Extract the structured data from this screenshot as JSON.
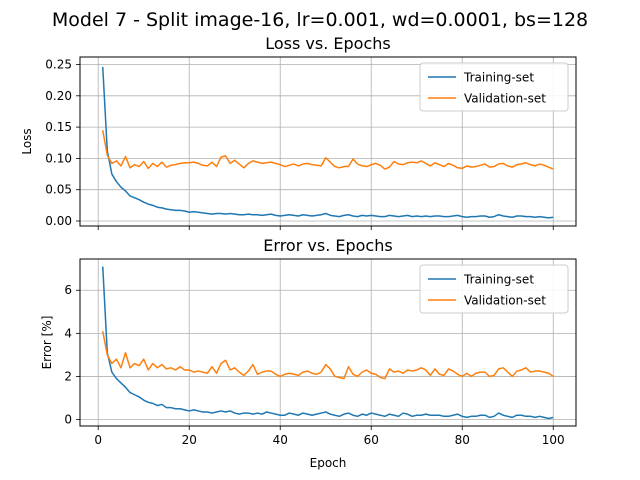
{
  "figure": {
    "suptitle": "Model 7 - Split image-16, lr=0.001, wd=0.0001, bs=128"
  },
  "colors": {
    "training": "#1f77b4",
    "validation": "#ff7f0e",
    "grid": "#b0b0b0"
  },
  "chart_data": [
    {
      "type": "line",
      "title": "Loss vs. Epochs",
      "xlabel": "",
      "ylabel": "Loss",
      "xlim": [
        -4,
        105
      ],
      "ylim": [
        -0.008,
        0.262
      ],
      "xticks": [
        0,
        20,
        40,
        60,
        80,
        100
      ],
      "show_xtick_labels": false,
      "yticks": [
        0.0,
        0.05,
        0.1,
        0.15,
        0.2,
        0.25
      ],
      "ytick_labels": [
        "0.00",
        "0.05",
        "0.10",
        "0.15",
        "0.20",
        "0.25"
      ],
      "grid": true,
      "legend": "top-right",
      "x_start": 1,
      "series": [
        {
          "name": "Training-set",
          "color_key": "training",
          "values": [
            0.246,
            0.112,
            0.075,
            0.063,
            0.054,
            0.048,
            0.04,
            0.037,
            0.034,
            0.03,
            0.027,
            0.025,
            0.022,
            0.021,
            0.019,
            0.018,
            0.017,
            0.017,
            0.016,
            0.014,
            0.015,
            0.014,
            0.013,
            0.012,
            0.011,
            0.012,
            0.012,
            0.011,
            0.012,
            0.011,
            0.01,
            0.01,
            0.011,
            0.01,
            0.01,
            0.009,
            0.01,
            0.011,
            0.009,
            0.008,
            0.009,
            0.01,
            0.009,
            0.008,
            0.01,
            0.009,
            0.008,
            0.009,
            0.01,
            0.012,
            0.009,
            0.008,
            0.007,
            0.009,
            0.01,
            0.008,
            0.007,
            0.009,
            0.008,
            0.009,
            0.008,
            0.007,
            0.007,
            0.009,
            0.008,
            0.007,
            0.008,
            0.009,
            0.007,
            0.008,
            0.007,
            0.008,
            0.007,
            0.008,
            0.008,
            0.007,
            0.007,
            0.008,
            0.009,
            0.007,
            0.006,
            0.007,
            0.007,
            0.008,
            0.008,
            0.006,
            0.007,
            0.01,
            0.008,
            0.007,
            0.006,
            0.008,
            0.008,
            0.007,
            0.007,
            0.006,
            0.007,
            0.006,
            0.005,
            0.006
          ]
        },
        {
          "name": "Validation-set",
          "color_key": "validation",
          "values": [
            0.145,
            0.105,
            0.092,
            0.096,
            0.088,
            0.103,
            0.085,
            0.09,
            0.087,
            0.095,
            0.084,
            0.092,
            0.087,
            0.094,
            0.086,
            0.089,
            0.09,
            0.092,
            0.093,
            0.093,
            0.094,
            0.092,
            0.089,
            0.088,
            0.094,
            0.087,
            0.102,
            0.104,
            0.092,
            0.097,
            0.091,
            0.085,
            0.092,
            0.096,
            0.094,
            0.092,
            0.093,
            0.094,
            0.092,
            0.09,
            0.087,
            0.089,
            0.091,
            0.088,
            0.091,
            0.092,
            0.09,
            0.089,
            0.088,
            0.101,
            0.094,
            0.087,
            0.085,
            0.087,
            0.087,
            0.099,
            0.091,
            0.088,
            0.087,
            0.09,
            0.092,
            0.089,
            0.083,
            0.086,
            0.095,
            0.091,
            0.09,
            0.093,
            0.094,
            0.093,
            0.096,
            0.092,
            0.088,
            0.093,
            0.09,
            0.087,
            0.092,
            0.089,
            0.085,
            0.084,
            0.088,
            0.086,
            0.087,
            0.089,
            0.091,
            0.086,
            0.087,
            0.091,
            0.092,
            0.088,
            0.086,
            0.09,
            0.091,
            0.093,
            0.09,
            0.088,
            0.091,
            0.089,
            0.086,
            0.083
          ]
        }
      ]
    },
    {
      "type": "line",
      "title": "Error vs. Epochs",
      "xlabel": "Epoch",
      "ylabel": "Error [%]",
      "xlim": [
        -4,
        105
      ],
      "ylim": [
        -0.3,
        7.45
      ],
      "xticks": [
        0,
        20,
        40,
        60,
        80,
        100
      ],
      "xtick_labels": [
        "0",
        "20",
        "40",
        "60",
        "80",
        "100"
      ],
      "show_xtick_labels": true,
      "yticks": [
        0,
        2,
        4,
        6
      ],
      "ytick_labels": [
        "0",
        "2",
        "4",
        "6"
      ],
      "grid": true,
      "legend": "top-right",
      "x_start": 1,
      "series": [
        {
          "name": "Training-set",
          "color_key": "training",
          "values": [
            7.1,
            3.1,
            2.2,
            1.9,
            1.7,
            1.5,
            1.25,
            1.15,
            1.05,
            0.9,
            0.8,
            0.75,
            0.65,
            0.7,
            0.55,
            0.55,
            0.5,
            0.5,
            0.45,
            0.4,
            0.45,
            0.4,
            0.35,
            0.35,
            0.3,
            0.35,
            0.4,
            0.35,
            0.4,
            0.3,
            0.25,
            0.3,
            0.3,
            0.25,
            0.3,
            0.25,
            0.35,
            0.3,
            0.25,
            0.2,
            0.2,
            0.3,
            0.25,
            0.2,
            0.3,
            0.25,
            0.2,
            0.25,
            0.3,
            0.35,
            0.25,
            0.2,
            0.15,
            0.25,
            0.3,
            0.2,
            0.15,
            0.25,
            0.2,
            0.3,
            0.25,
            0.2,
            0.15,
            0.25,
            0.2,
            0.15,
            0.3,
            0.25,
            0.15,
            0.2,
            0.2,
            0.25,
            0.2,
            0.2,
            0.2,
            0.15,
            0.15,
            0.2,
            0.25,
            0.15,
            0.1,
            0.15,
            0.15,
            0.2,
            0.2,
            0.1,
            0.15,
            0.3,
            0.2,
            0.15,
            0.1,
            0.2,
            0.2,
            0.15,
            0.15,
            0.1,
            0.15,
            0.1,
            0.05,
            0.1
          ]
        },
        {
          "name": "Validation-set",
          "color_key": "validation",
          "values": [
            4.1,
            3.0,
            2.6,
            2.8,
            2.4,
            3.1,
            2.4,
            2.6,
            2.5,
            2.8,
            2.3,
            2.6,
            2.4,
            2.55,
            2.35,
            2.4,
            2.3,
            2.45,
            2.3,
            2.3,
            2.2,
            2.25,
            2.2,
            2.15,
            2.45,
            2.15,
            2.6,
            2.75,
            2.3,
            2.4,
            2.2,
            2.05,
            2.25,
            2.55,
            2.1,
            2.2,
            2.25,
            2.25,
            2.1,
            2.0,
            2.1,
            2.15,
            2.1,
            2.05,
            2.2,
            2.25,
            2.15,
            2.1,
            2.2,
            2.55,
            2.35,
            2.0,
            1.95,
            1.9,
            2.45,
            2.1,
            2.0,
            2.2,
            2.3,
            2.15,
            2.1,
            1.95,
            1.9,
            2.35,
            2.2,
            2.25,
            2.15,
            2.3,
            2.25,
            2.3,
            2.4,
            2.3,
            2.05,
            2.35,
            2.1,
            2.05,
            2.35,
            2.25,
            2.1,
            2.0,
            2.15,
            2.0,
            2.15,
            2.2,
            2.2,
            2.0,
            2.05,
            2.35,
            2.4,
            2.2,
            2.0,
            2.25,
            2.3,
            2.4,
            2.2,
            2.25,
            2.25,
            2.2,
            2.15,
            2.0
          ]
        }
      ]
    }
  ]
}
